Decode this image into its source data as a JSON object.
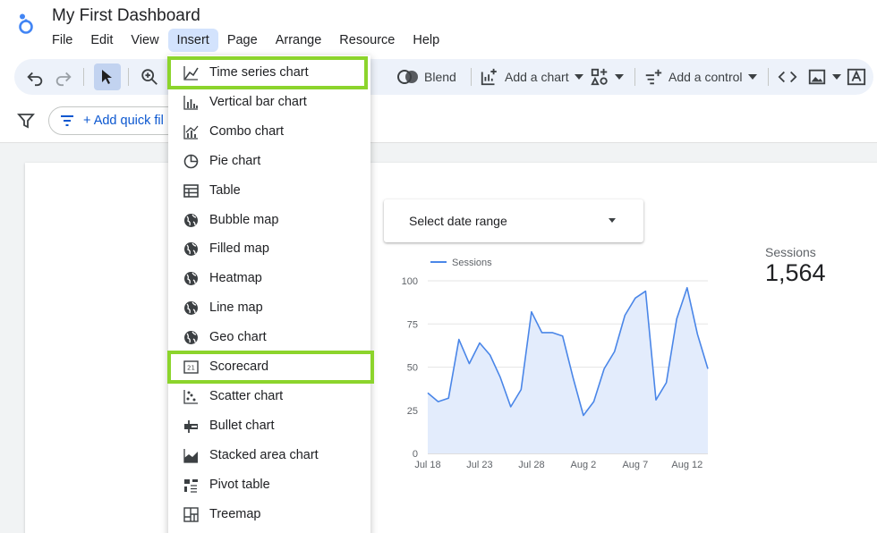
{
  "app": {
    "title": "My First Dashboard",
    "logo_icon": "looker-studio-logo-icon"
  },
  "menubar": [
    {
      "label": "File"
    },
    {
      "label": "Edit"
    },
    {
      "label": "View"
    },
    {
      "label": "Insert",
      "active": true
    },
    {
      "label": "Page"
    },
    {
      "label": "Arrange"
    },
    {
      "label": "Resource"
    },
    {
      "label": "Help"
    }
  ],
  "toolbar": {
    "blend_label": "Blend",
    "add_chart_label": "Add a chart",
    "add_control_label": "Add a control",
    "icons": [
      "undo-icon",
      "redo-icon",
      "select-pointer-icon",
      "zoom-icon",
      "blend-icon",
      "add-chart-icon",
      "community-viz-icon",
      "add-control-icon",
      "embed-code-icon",
      "image-icon",
      "text-icon"
    ]
  },
  "filterbar": {
    "add_quick_filter_label": "+ Add quick fil"
  },
  "insert_menu": {
    "items": [
      {
        "label": "Time series chart",
        "icon": "time-series-icon",
        "highlighted": true
      },
      {
        "label": "Vertical bar chart",
        "icon": "bar-chart-icon"
      },
      {
        "label": "Combo chart",
        "icon": "combo-chart-icon"
      },
      {
        "label": "Pie chart",
        "icon": "pie-chart-icon"
      },
      {
        "label": "Table",
        "icon": "table-icon"
      },
      {
        "label": "Bubble map",
        "icon": "globe-icon"
      },
      {
        "label": "Filled map",
        "icon": "globe-icon"
      },
      {
        "label": "Heatmap",
        "icon": "globe-icon"
      },
      {
        "label": "Line map",
        "icon": "globe-icon"
      },
      {
        "label": "Geo chart",
        "icon": "globe-icon"
      },
      {
        "label": "Scorecard",
        "icon": "scorecard-icon",
        "highlighted": true
      },
      {
        "label": "Scatter chart",
        "icon": "scatter-chart-icon"
      },
      {
        "label": "Bullet chart",
        "icon": "bullet-chart-icon"
      },
      {
        "label": "Stacked area chart",
        "icon": "stacked-area-icon"
      },
      {
        "label": "Pivot table",
        "icon": "pivot-table-icon"
      },
      {
        "label": "Treemap",
        "icon": "treemap-icon"
      }
    ],
    "highlight_color": "#8cd42c"
  },
  "date_control": {
    "label": "Select date range"
  },
  "scorecard": {
    "label": "Sessions",
    "value": "1,564"
  },
  "chart_data": {
    "type": "area",
    "series": [
      {
        "name": "Sessions",
        "values": [
          35,
          30,
          32,
          66,
          52,
          64,
          57,
          44,
          27,
          37,
          82,
          70,
          70,
          68,
          44,
          22,
          30,
          49,
          59,
          80,
          90,
          94,
          31,
          41,
          78,
          96,
          69,
          49
        ]
      }
    ],
    "x_tick_labels": [
      "Jul 18",
      "Jul 23",
      "Jul 28",
      "Aug 2",
      "Aug 7",
      "Aug 12"
    ],
    "y_tick_labels": [
      "0",
      "25",
      "50",
      "75",
      "100"
    ],
    "ylim": [
      0,
      100
    ],
    "legend_position": "top-left",
    "grid": true,
    "line_color": "#4a86e8"
  }
}
